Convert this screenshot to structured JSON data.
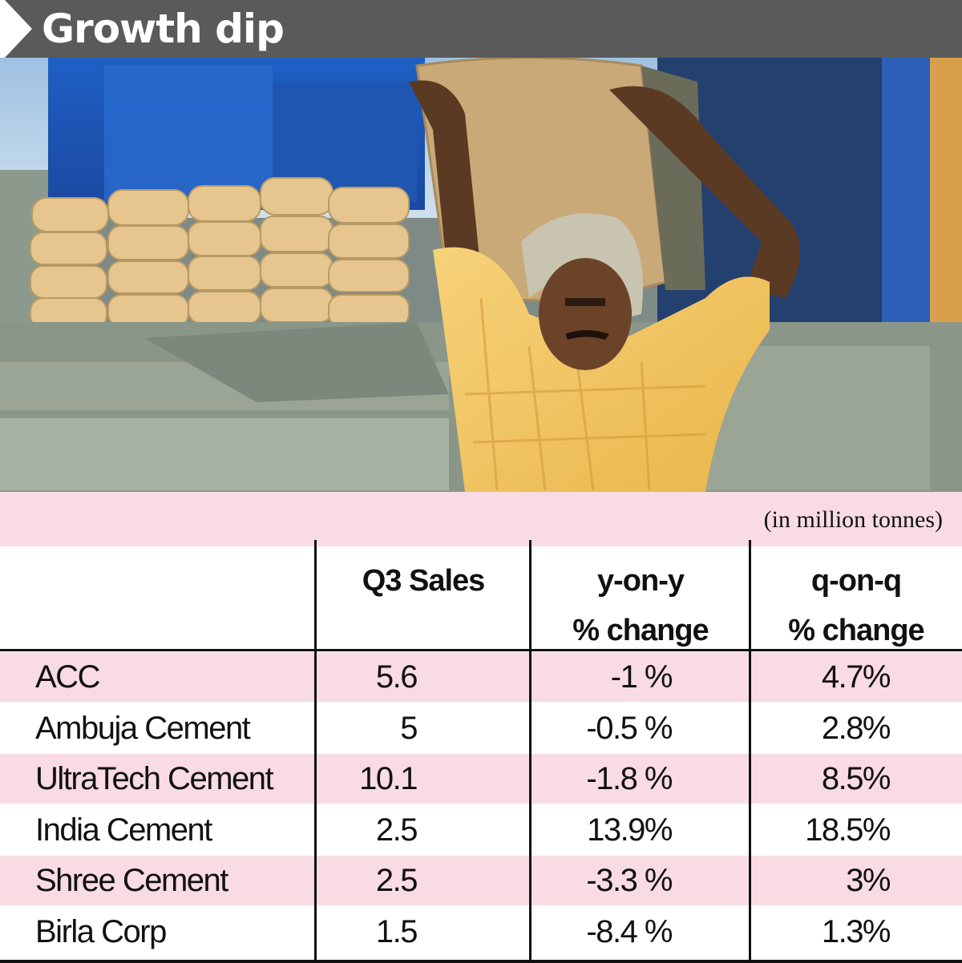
{
  "header": {
    "title": "Growth dip"
  },
  "unit_note": "(in million tonnes)",
  "chart_data": {
    "type": "table",
    "title": "Growth dip",
    "unit": "(in million tonnes)",
    "columns": [
      {
        "line1": "",
        "line2": ""
      },
      {
        "line1": "Q3 Sales",
        "line2": ""
      },
      {
        "line1": "y-on-y",
        "line2": "% change"
      },
      {
        "line1": "q-on-q",
        "line2": "% change"
      }
    ],
    "rows": [
      {
        "company": "ACC",
        "q3_sales": "5.6",
        "yoy": "-1 %",
        "qoq": "4.7%"
      },
      {
        "company": "Ambuja Cement",
        "q3_sales": "5",
        "yoy": "-0.5 %",
        "qoq": "2.8%"
      },
      {
        "company": "UltraTech Cement",
        "q3_sales": "10.1",
        "yoy": "-1.8 %",
        "qoq": "8.5%"
      },
      {
        "company": "India Cement",
        "q3_sales": "2.5",
        "yoy": "13.9%",
        "qoq": "18.5%"
      },
      {
        "company": "Shree Cement",
        "q3_sales": "2.5",
        "yoy": "-3.3 %",
        "qoq": "3%"
      },
      {
        "company": "Birla Corp",
        "q3_sales": "1.5",
        "yoy": "-8.4 %",
        "qoq": "1.3%"
      }
    ]
  },
  "colors": {
    "header_bg": "#5a5a5a",
    "band_pink": "#f9dbe4",
    "rule": "#111111"
  }
}
